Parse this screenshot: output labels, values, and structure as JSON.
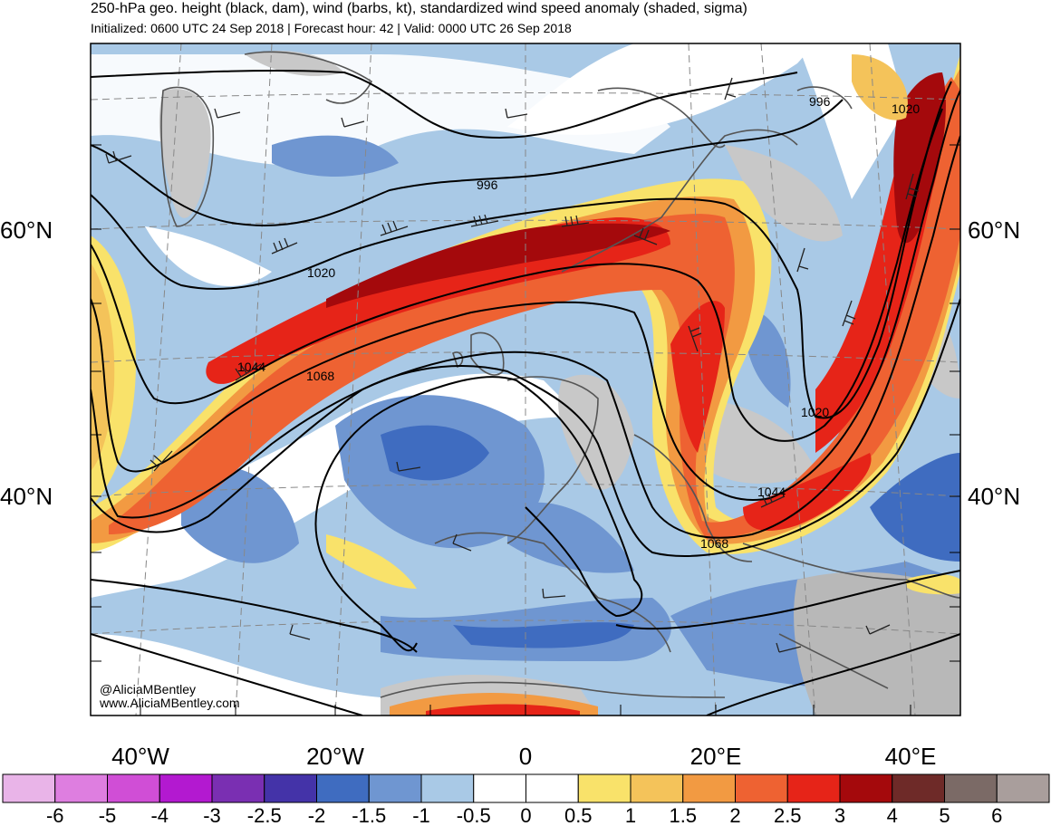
{
  "header": {
    "title": "250-hPa geo. height (black, dam), wind (barbs, kt), standardized wind speed anomaly (shaded, sigma)",
    "subtitle": "Initialized: 0600 UTC 24 Sep 2018 | Forecast hour: 42 | Valid: 0000 UTC 26 Sep 2018"
  },
  "map": {
    "lat_labels": [
      "60°N",
      "40°N"
    ],
    "lon_labels": [
      "40°W",
      "20°W",
      "0",
      "20°E",
      "40°E"
    ],
    "contour_labels": [
      "996",
      "996",
      "1020",
      "1020",
      "1020",
      "1044",
      "1044",
      "1068",
      "1068"
    ],
    "credit_handle": "@AliciaMBentley",
    "credit_url": "www.AliciaMBentley.com"
  },
  "colorbar": {
    "labels": [
      "-6",
      "-5",
      "-4",
      "-3",
      "-2.5",
      "-2",
      "-1.5",
      "-1",
      "-0.5",
      "0",
      "0.5",
      "1",
      "1.5",
      "2",
      "2.5",
      "3",
      "4",
      "5",
      "6"
    ],
    "colors": [
      "#e9b4e8",
      "#de7ee0",
      "#d04ed6",
      "#b319d0",
      "#7a2fb2",
      "#4433a8",
      "#3f6cc0",
      "#6f96d1",
      "#a9c9e6",
      "#ffffff",
      "#ffffff",
      "#f9e26a",
      "#f4c35a",
      "#f29a42",
      "#ee6232",
      "#e62418",
      "#a4090c",
      "#6e2a28",
      "#7b6a66",
      "#a99e9c"
    ]
  },
  "colors": {
    "ocean_neutral": "#ffffff",
    "negative_light": "#a9c9e6",
    "negative_mid": "#6f96d1",
    "negative_strong": "#3f6cc0",
    "positive_light": "#f9e26a",
    "positive_mid": "#f29a42",
    "positive_strong": "#e62418",
    "positive_extreme": "#a4090c",
    "land_gray": "#c8c8c8"
  }
}
